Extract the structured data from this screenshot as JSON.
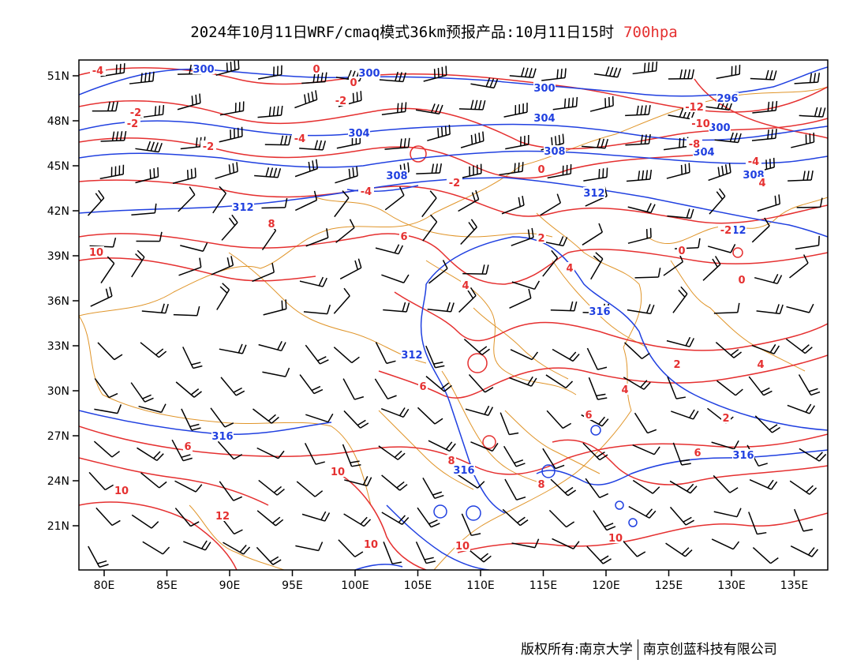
{
  "title": {
    "main": "2024年10月11日WRF/cmaq模式36km预报产品:10月11日15时",
    "level": "700hpa",
    "level_color": "#e53030"
  },
  "footer": {
    "copyright": "版权所有:南京大学",
    "company": "南京创蓝科技有限公司"
  },
  "colors": {
    "height_contour": "#2040e0",
    "temperature_contour": "#e53030",
    "boundary": "#e0952a",
    "wind_barb": "#000000"
  },
  "axes": {
    "lat_labels": [
      "51N",
      "48N",
      "45N",
      "42N",
      "39N",
      "36N",
      "33N",
      "30N",
      "27N",
      "24N",
      "21N"
    ],
    "lon_labels": [
      "80E",
      "85E",
      "90E",
      "95E",
      "100E",
      "105E",
      "110E",
      "115E",
      "120E",
      "125E",
      "130E",
      "135E"
    ]
  },
  "contour_labels": {
    "height": [
      "300",
      "300",
      "300",
      "296",
      "300",
      "304",
      "304",
      "304",
      "308",
      "308",
      "308",
      "312",
      "312",
      "312",
      "312",
      "316",
      "316",
      "316",
      "316"
    ],
    "temperature": [
      "-4",
      "-2",
      "-2",
      "0",
      "0",
      "-2",
      "-2",
      "-4",
      "-12",
      "-10",
      "-8",
      "-4",
      "-4",
      "-2",
      "2",
      "0",
      "-2",
      "6",
      "4",
      "2",
      "4",
      "0",
      "0",
      "4",
      "2",
      "6",
      "6",
      "4",
      "6",
      "8",
      "6",
      "10",
      "10",
      "10",
      "12",
      "10",
      "8",
      "10",
      "10",
      "8",
      "4"
    ]
  }
}
